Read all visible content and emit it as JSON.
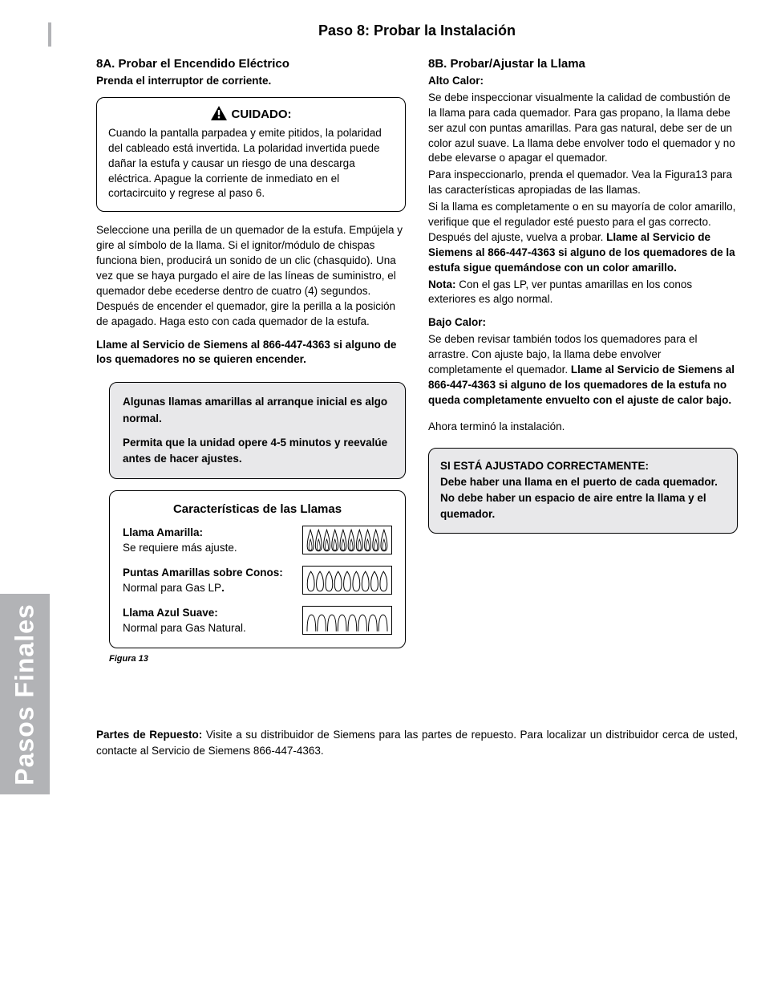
{
  "sideTab": "Pasos Finales",
  "pageTitle": "Paso 8: Probar la Instalación",
  "left": {
    "head": "8A.  Probar el Encendido Eléctrico",
    "sub": "Prenda el interruptor de corriente.",
    "warnTitle": "CUIDADO:",
    "warnBody": "Cuando la pantalla parpadea y emite pitidos, la polaridad del cableado está invertida. La polaridad invertida puede dañar la estufa y causar un riesgo de una descarga eléctrica. Apague la corriente de inmediato en el cortacircuito y regrese al paso 6.",
    "body1": "Seleccione una perilla de un quemador de la estufa. Empújela y gire al símbolo de la llama. Si el ignitor/módulo de chispas funciona bien, producirá un sonido de un clic (chasquido). Una vez que se haya purgado el aire de las líneas de suministro, el quemador debe ecederse dentro de cuatro (4) segundos. Después de encender el quemador, gire la perilla a la posición de apagado. Haga esto con cada quemador de la estufa.",
    "body1Bold": "Llame al Servicio de Siemens al 866-447-4363 si alguno de los quemadores no se quieren encender.",
    "note1": "Algunas llamas amarillas al arranque inicial es algo normal.",
    "note2": "Permita que la unidad opere 4-5 minutos y reevalúe antes de hacer ajustes.",
    "flameTitle": "Características de las Llamas",
    "flame1Label": "Llama Amarilla:",
    "flame1Text": "Se requiere más ajuste.",
    "flame2Label": "Puntas Amarillas sobre Conos:",
    "flame2Text": "Normal para Gas LP",
    "flame3Label": "Llama Azul Suave:",
    "flame3Text": "Normal para Gas Natural.",
    "figCaption": "Figura 13"
  },
  "right": {
    "head": "8B.  Probar/Ajustar la Llama",
    "subHigh": "Alto Calor:",
    "p1": "Se debe inspeccionar visualmente la calidad de combustión de la llama para cada quemador. Para gas propano, la llama debe ser azul con puntas amarillas. Para gas natural, debe ser de un color azul suave. La llama debe envolver todo el quemador y no debe elevarse o apagar el quemador.",
    "p2": "Para inspeccionarlo, prenda el quemador. Vea la Figura13 para las características apropiadas de las llamas.",
    "p3a": "Si la llama es completamente o en su mayoría de color amarillo, verifique que el regulador esté puesto para el gas correcto. Después del ajuste, vuelva a probar.  ",
    "p3b": "Llame al Servicio de Siemens al 866-447-4363 si alguno de los quemadores de la estufa sigue quemándose con un color amarillo.",
    "noteLabel": "Nota:",
    "noteText": " Con el gas LP, ver puntas amarillas en los conos exteriores es algo normal.",
    "subLow": "Bajo Calor:",
    "low1a": "Se deben revisar también todos los quemadores para el arrastre. Con ajuste bajo, la llama debe envolver completamente el quemador.  ",
    "low1b": "Llame al Servicio de Siemens al 866-447-4363 si alguno de los quemadores de la estufa no queda completamente envuelto con el ajuste de calor bajo.",
    "done": "Ahora terminó la instalación.",
    "correct1": "SI ESTÁ AJUSTADO CORRECTAMENTE:",
    "correct2": "Debe haber una llama en el puerto de cada quemador.",
    "correct3": "No debe haber un espacio de aire entre la llama y el quemador."
  },
  "bottom": {
    "label": "Partes de Repuesto:",
    "text": "  Visite a su distribuidor de Siemens para las partes de repuesto. Para localizar un distribuidor cerca de usted, contacte al Servicio de Siemens 866-447-4363."
  },
  "flameSvg": {
    "yellow": {
      "count": 10,
      "shape": "teardrop"
    },
    "tips": {
      "count": 9,
      "shape": "oval-tip"
    },
    "blue": {
      "count": 8,
      "shape": "arch"
    }
  }
}
